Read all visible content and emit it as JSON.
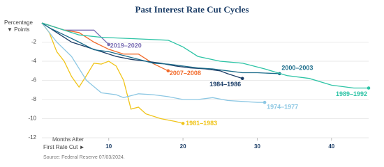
{
  "chart_data": {
    "type": "line",
    "title": "Past Interest Rate Cut Cycles",
    "y_label": [
      "Percentage",
      "▼ Points"
    ],
    "x_label": [
      "Months After",
      "First Rate Cut ►"
    ],
    "source": "Source: Federal Reserve 07/03/2024.",
    "xlim": [
      1,
      45
    ],
    "ylim": [
      -12,
      0
    ],
    "xticks": [
      10,
      20,
      30,
      40
    ],
    "yticks": [
      -2,
      -4,
      -6,
      -8,
      -10,
      -12
    ],
    "grid": true,
    "series": [
      {
        "name": "2019–2020",
        "color": "#7b6fb5",
        "x": [
          1,
          2,
          4,
          6,
          8,
          10
        ],
        "values": [
          0,
          -0.25,
          -0.75,
          -0.75,
          -0.75,
          -2.25
        ]
      },
      {
        "name": "2007–2008",
        "color": "#f26b2b",
        "x": [
          1,
          4,
          6,
          8,
          10,
          12,
          14,
          16,
          18
        ],
        "values": [
          0,
          -0.75,
          -1,
          -2,
          -2.75,
          -3.25,
          -3.25,
          -4.25,
          -5
        ]
      },
      {
        "name": "1981–1983",
        "color": "#f0c419",
        "x": [
          1,
          2,
          3,
          4,
          5,
          6,
          7,
          8,
          9,
          10,
          11,
          12,
          13,
          14,
          15,
          17,
          19,
          20
        ],
        "values": [
          0,
          -1,
          -3,
          -4,
          -5.6,
          -6.7,
          -5.5,
          -4.2,
          -4.3,
          -4,
          -4.5,
          -6,
          -9,
          -8.8,
          -9.5,
          -10,
          -10.3,
          -10.5
        ]
      },
      {
        "name": "1974–1977",
        "color": "#8cc7e3",
        "x": [
          1,
          3,
          5,
          7,
          9,
          11,
          12,
          14,
          16,
          18,
          20,
          22,
          24,
          26,
          28,
          30,
          31
        ],
        "values": [
          0,
          -2,
          -3.5,
          -6,
          -7.3,
          -7.5,
          -7.8,
          -7.4,
          -7.5,
          -7.7,
          -8,
          -8,
          -7.8,
          -8.1,
          -8.2,
          -8.3,
          -8.3
        ]
      },
      {
        "name": "1984–1986",
        "color": "#1a3c66",
        "x": [
          1,
          3,
          5,
          7,
          9,
          11,
          13,
          15,
          17,
          19,
          21,
          23,
          25,
          26,
          28
        ],
        "values": [
          0,
          -1,
          -2,
          -2.5,
          -3,
          -3.5,
          -3.8,
          -4,
          -4.2,
          -4.5,
          -4.7,
          -4.8,
          -5,
          -5.3,
          -5.8
        ]
      },
      {
        "name": "2000–2003",
        "color": "#1a6b8a",
        "x": [
          1,
          2,
          4,
          6,
          8,
          10,
          12,
          14,
          16,
          18,
          20,
          22,
          24,
          26,
          28,
          30,
          33
        ],
        "values": [
          0,
          -0.5,
          -1.25,
          -2,
          -2.8,
          -3,
          -3.4,
          -3.8,
          -4.2,
          -4.3,
          -4.5,
          -4.7,
          -4.8,
          -5,
          -5.2,
          -5.2,
          -5.3
        ]
      },
      {
        "name": "1989–1992",
        "color": "#2ec4a6",
        "x": [
          1,
          3,
          6,
          9,
          12,
          15,
          18,
          20,
          22,
          25,
          28,
          31,
          34,
          37,
          40,
          43,
          45
        ],
        "values": [
          0,
          -0.5,
          -1.25,
          -1.5,
          -1.6,
          -1.7,
          -1.8,
          -2.5,
          -3.5,
          -4,
          -4.2,
          -4.8,
          -5.5,
          -5.8,
          -6.5,
          -6.8,
          -6.8
        ]
      }
    ]
  }
}
